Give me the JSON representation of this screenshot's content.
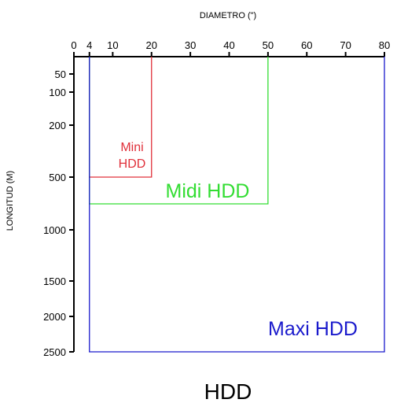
{
  "chart_data": {
    "type": "area",
    "title": "HDD",
    "xlabel": "DIAMETRO (\")",
    "ylabel": "LONGITUD (M)",
    "x_ticks": [
      0,
      4,
      10,
      20,
      30,
      40,
      50,
      60,
      70,
      80
    ],
    "y_ticks": [
      50,
      100,
      200,
      500,
      1000,
      1500,
      2000,
      2500
    ],
    "xlim": [
      0,
      80
    ],
    "ylim": [
      0,
      2500
    ],
    "grid": false,
    "regions": [
      {
        "label": [
          "Mini",
          "HDD"
        ],
        "x_range": [
          4,
          20
        ],
        "y_range": [
          0,
          500
        ],
        "color": "#e0303a"
      },
      {
        "label": [
          "Midi HDD"
        ],
        "x_range": [
          4,
          50
        ],
        "y_range": [
          0,
          750
        ],
        "color": "#33dd33"
      },
      {
        "label": [
          "Maxi HDD"
        ],
        "x_range": [
          4,
          80
        ],
        "y_range": [
          0,
          2500
        ],
        "color": "#1a1acc"
      }
    ]
  }
}
